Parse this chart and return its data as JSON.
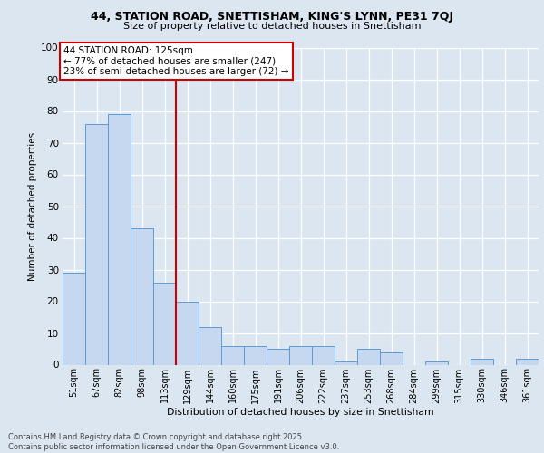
{
  "title1": "44, STATION ROAD, SNETTISHAM, KING'S LYNN, PE31 7QJ",
  "title2": "Size of property relative to detached houses in Snettisham",
  "xlabel": "Distribution of detached houses by size in Snettisham",
  "ylabel": "Number of detached properties",
  "categories": [
    "51sqm",
    "67sqm",
    "82sqm",
    "98sqm",
    "113sqm",
    "129sqm",
    "144sqm",
    "160sqm",
    "175sqm",
    "191sqm",
    "206sqm",
    "222sqm",
    "237sqm",
    "253sqm",
    "268sqm",
    "284sqm",
    "299sqm",
    "315sqm",
    "330sqm",
    "346sqm",
    "361sqm"
  ],
  "values": [
    29,
    76,
    79,
    43,
    26,
    20,
    12,
    6,
    6,
    5,
    6,
    6,
    1,
    5,
    4,
    0,
    1,
    0,
    2,
    0,
    2
  ],
  "bar_color": "#c5d8f0",
  "bar_edge_color": "#5b9bd5",
  "vline_color": "#cc0000",
  "vline_xindex": 4.5,
  "annotation_line1": "44 STATION ROAD: 125sqm",
  "annotation_line2": "← 77% of detached houses are smaller (247)",
  "annotation_line3": "23% of semi-detached houses are larger (72) →",
  "background_color": "#dce6f1",
  "footer": "Contains HM Land Registry data © Crown copyright and database right 2025.\nContains public sector information licensed under the Open Government Licence v3.0.",
  "ylim": [
    0,
    100
  ],
  "yticks": [
    0,
    10,
    20,
    30,
    40,
    50,
    60,
    70,
    80,
    90,
    100
  ]
}
